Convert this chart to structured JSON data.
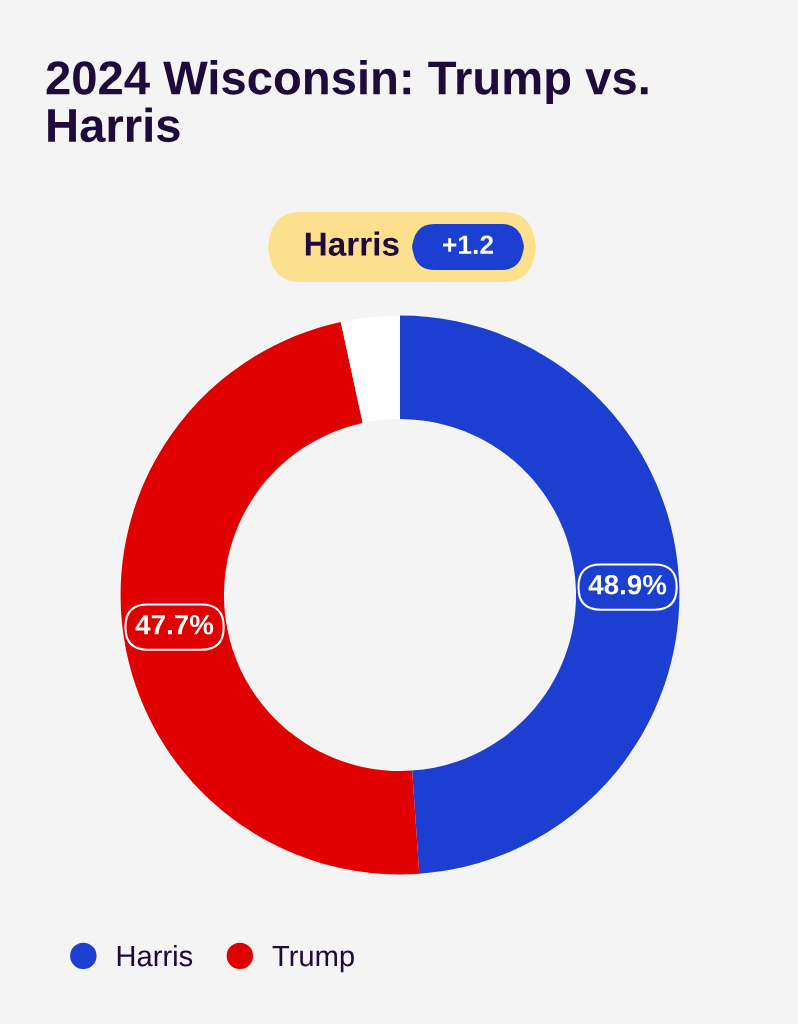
{
  "chart_data": {
    "type": "donut",
    "title": "2024 Wisconsin: Trump vs. Harris",
    "categories": [
      "Harris",
      "Trump",
      null
    ],
    "values": [
      48.9,
      47.7,
      3.4
    ],
    "colors": [
      "#1c3fd1",
      "#e00000",
      "#ffffff"
    ],
    "value_labels": [
      "48.9%",
      "47.7%",
      null
    ],
    "annotations": [
      "Harris",
      "+1.2"
    ],
    "legend": "bottom left"
  }
}
